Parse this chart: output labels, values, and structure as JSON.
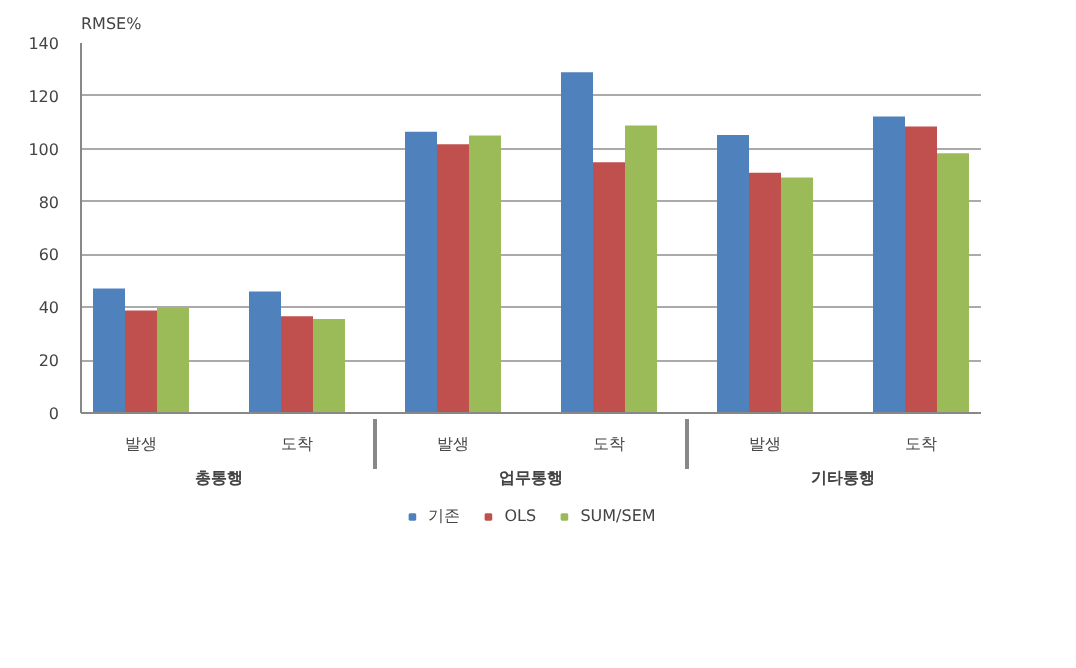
{
  "chart_data": {
    "type": "bar",
    "ylabel": "RMSE%",
    "categories": [
      "발생",
      "도착",
      "발생",
      "도착",
      "발생",
      "도착"
    ],
    "annotations": [
      "총통행",
      "업무통행",
      "기타통행"
    ],
    "series": [
      {
        "name": "기존",
        "color": "#4f81bd",
        "values": [
          47.1,
          46,
          106.4,
          128.9,
          105.2,
          112.2
        ]
      },
      {
        "name": "OLS",
        "color": "#c0504d",
        "values": [
          38.8,
          36.6,
          101.7,
          94.9,
          90.9,
          108.4
        ]
      },
      {
        "name": "SUM/SEM",
        "color": "#9bbb59",
        "values": [
          39.8,
          35.6,
          105,
          108.8,
          89.1,
          98.3
        ]
      }
    ],
    "ylim": [
      0,
      140
    ],
    "yticks": [
      0,
      20,
      40,
      60,
      80,
      100,
      120,
      140
    ],
    "grid": "y",
    "legend": "bottom"
  }
}
